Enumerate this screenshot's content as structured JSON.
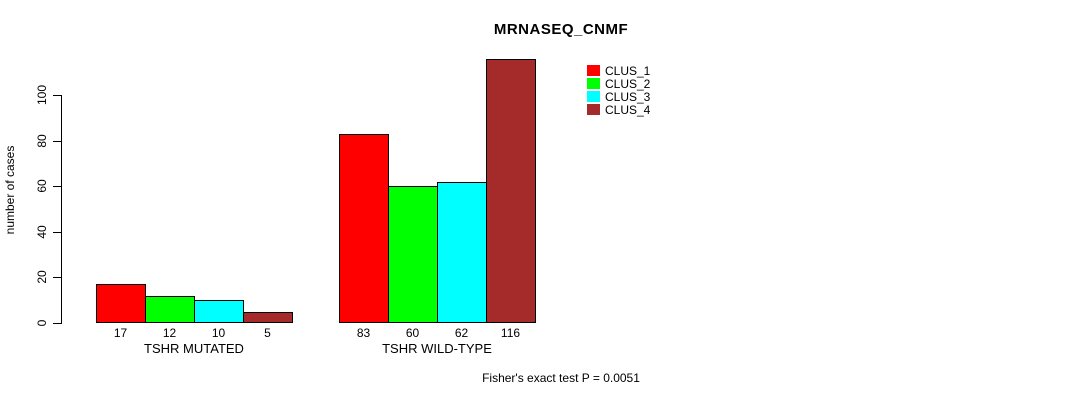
{
  "chart_data": {
    "type": "bar",
    "title": "MRNASEQ_CNMF",
    "xlabel": "",
    "ylabel": "number of cases",
    "ylim": [
      0,
      100
    ],
    "yticks": [
      0,
      20,
      40,
      60,
      80,
      100
    ],
    "grid": false,
    "legend_position": "top-right",
    "value_labels_visible": true,
    "categories": [
      "TSHR MUTATED",
      "TSHR WILD-TYPE"
    ],
    "series": [
      {
        "name": "CLUS_1",
        "color": "#ff0000",
        "values": [
          17,
          83
        ]
      },
      {
        "name": "CLUS_2",
        "color": "#00ff00",
        "values": [
          12,
          60
        ]
      },
      {
        "name": "CLUS_3",
        "color": "#00ffff",
        "values": [
          10,
          62
        ]
      },
      {
        "name": "CLUS_4",
        "color": "#a52a2a",
        "values": [
          5,
          116
        ]
      }
    ],
    "annotation": "Fisher's exact test P = 0.0051"
  }
}
